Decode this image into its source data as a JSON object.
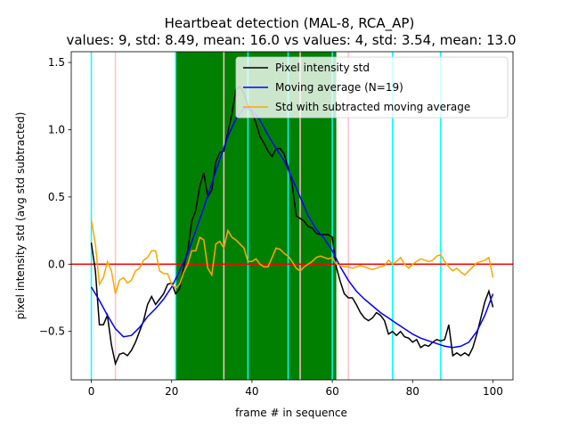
{
  "chart_data": {
    "type": "line",
    "title": "Heartbeat detection (MAL-8, RCA_AP)",
    "subtitle": "values: 9, std: 8.49, mean: 16.0 vs values: 4, std: 3.54, mean: 13.0",
    "xlabel": "frame # in sequence",
    "ylabel": "pixel intensity std (avg std subtracted)",
    "xlim": [
      -5,
      105
    ],
    "ylim": [
      -0.86,
      1.58
    ],
    "xticks": [
      "0",
      "20",
      "40",
      "60",
      "80",
      "100"
    ],
    "yticks": [
      "−0.5",
      "0.0",
      "0.5",
      "1.0",
      "1.5"
    ],
    "legend_position": "top-right",
    "highlight_band": {
      "x_start": 21,
      "x_end": 61,
      "color": "#008000"
    },
    "vlines_cyan": [
      0,
      21,
      39,
      49,
      60,
      75,
      87
    ],
    "vlines_pink": [
      6,
      33,
      52,
      64
    ],
    "hline_zero": {
      "y": 0,
      "color": "#ff0000"
    },
    "series": [
      {
        "name": "Pixel intensity std",
        "color": "#000000",
        "x": [
          0,
          1,
          2,
          3,
          4,
          5,
          6,
          7,
          8,
          9,
          10,
          11,
          12,
          13,
          14,
          15,
          16,
          17,
          18,
          19,
          20,
          21,
          22,
          23,
          24,
          25,
          26,
          27,
          28,
          29,
          30,
          31,
          32,
          33,
          34,
          35,
          36,
          37,
          38,
          39,
          40,
          41,
          42,
          43,
          44,
          45,
          46,
          47,
          48,
          49,
          50,
          51,
          52,
          53,
          54,
          55,
          56,
          57,
          58,
          59,
          60,
          61,
          62,
          63,
          64,
          65,
          66,
          67,
          68,
          69,
          70,
          71,
          72,
          73,
          74,
          75,
          76,
          77,
          78,
          79,
          80,
          81,
          82,
          83,
          84,
          85,
          86,
          87,
          88,
          89,
          90,
          91,
          92,
          93,
          94,
          95,
          96,
          97,
          98,
          99,
          100
        ],
        "y": [
          0.16,
          -0.05,
          -0.45,
          -0.45,
          -0.38,
          -0.6,
          -0.74,
          -0.67,
          -0.66,
          -0.68,
          -0.64,
          -0.58,
          -0.5,
          -0.42,
          -0.3,
          -0.24,
          -0.3,
          -0.26,
          -0.22,
          -0.15,
          -0.14,
          -0.22,
          -0.18,
          -0.02,
          0.1,
          0.32,
          0.4,
          0.58,
          0.68,
          0.5,
          0.55,
          0.76,
          0.83,
          0.84,
          0.98,
          1.12,
          1.3,
          1.32,
          1.27,
          1.18,
          1.13,
          1.05,
          0.95,
          0.9,
          0.84,
          0.8,
          0.86,
          0.86,
          0.82,
          0.72,
          0.6,
          0.36,
          0.34,
          0.32,
          0.28,
          0.27,
          0.23,
          0.22,
          0.22,
          0.22,
          0.2,
          -0.02,
          -0.13,
          -0.22,
          -0.25,
          -0.25,
          -0.3,
          -0.36,
          -0.4,
          -0.42,
          -0.4,
          -0.36,
          -0.38,
          -0.42,
          -0.52,
          -0.5,
          -0.53,
          -0.5,
          -0.54,
          -0.55,
          -0.58,
          -0.56,
          -0.62,
          -0.6,
          -0.61,
          -0.58,
          -0.56,
          -0.57,
          -0.56,
          -0.45,
          -0.68,
          -0.66,
          -0.68,
          -0.66,
          -0.68,
          -0.62,
          -0.52,
          -0.4,
          -0.28,
          -0.2,
          -0.32
        ]
      },
      {
        "name": "Moving average (N=19)",
        "color": "#0000ff",
        "x": [
          0,
          2,
          4,
          6,
          8,
          10,
          12,
          14,
          16,
          18,
          20,
          22,
          24,
          26,
          28,
          30,
          32,
          34,
          36,
          38,
          40,
          42,
          44,
          46,
          48,
          50,
          52,
          54,
          56,
          58,
          60,
          62,
          64,
          66,
          68,
          70,
          72,
          74,
          76,
          78,
          80,
          82,
          84,
          86,
          88,
          90,
          92,
          94,
          96,
          98,
          100
        ],
        "y": [
          -0.17,
          -0.27,
          -0.38,
          -0.48,
          -0.54,
          -0.53,
          -0.47,
          -0.39,
          -0.33,
          -0.26,
          -0.17,
          -0.05,
          0.08,
          0.25,
          0.42,
          0.6,
          0.78,
          0.95,
          1.08,
          1.16,
          1.15,
          1.07,
          0.96,
          0.86,
          0.77,
          0.64,
          0.5,
          0.36,
          0.26,
          0.19,
          0.1,
          -0.02,
          -0.12,
          -0.2,
          -0.26,
          -0.31,
          -0.36,
          -0.4,
          -0.44,
          -0.48,
          -0.52,
          -0.55,
          -0.57,
          -0.59,
          -0.61,
          -0.62,
          -0.61,
          -0.58,
          -0.5,
          -0.38,
          -0.22
        ]
      },
      {
        "name": "Std with subtracted moving average",
        "color": "#ffa500",
        "x": [
          0,
          1,
          2,
          3,
          4,
          5,
          6,
          7,
          8,
          9,
          10,
          11,
          12,
          13,
          14,
          15,
          16,
          17,
          18,
          19,
          20,
          21,
          22,
          23,
          24,
          25,
          26,
          27,
          28,
          29,
          30,
          31,
          32,
          33,
          34,
          35,
          36,
          37,
          38,
          39,
          40,
          41,
          42,
          43,
          44,
          45,
          46,
          47,
          48,
          49,
          50,
          51,
          52,
          53,
          54,
          55,
          56,
          57,
          58,
          59,
          60,
          61,
          62,
          63,
          64,
          65,
          66,
          67,
          68,
          69,
          70,
          71,
          72,
          73,
          74,
          75,
          76,
          77,
          78,
          79,
          80,
          81,
          82,
          83,
          84,
          85,
          86,
          87,
          88,
          89,
          90,
          91,
          92,
          93,
          94,
          95,
          96,
          97,
          98,
          99,
          100
        ],
        "y": [
          0.33,
          0.15,
          -0.15,
          -0.1,
          0.02,
          -0.05,
          -0.22,
          -0.12,
          -0.1,
          -0.14,
          -0.12,
          -0.05,
          -0.03,
          0.03,
          0.05,
          0.1,
          0.1,
          -0.05,
          -0.07,
          -0.07,
          -0.15,
          -0.18,
          -0.15,
          -0.06,
          0.0,
          0.1,
          0.1,
          0.2,
          0.18,
          -0.03,
          -0.08,
          0.15,
          0.17,
          0.12,
          0.25,
          0.2,
          0.18,
          0.15,
          0.12,
          0.02,
          0.02,
          0.04,
          0.0,
          -0.02,
          -0.02,
          0.05,
          0.12,
          0.11,
          0.08,
          0.06,
          0.02,
          -0.03,
          -0.05,
          -0.02,
          0.0,
          0.02,
          0.05,
          0.06,
          0.05,
          0.04,
          0.05,
          0.0,
          -0.01,
          -0.02,
          -0.02,
          -0.03,
          -0.02,
          -0.01,
          -0.02,
          -0.03,
          -0.04,
          -0.03,
          -0.02,
          -0.01,
          0.03,
          0.0,
          0.02,
          0.05,
          0.0,
          -0.03,
          0.0,
          0.02,
          0.04,
          0.03,
          0.02,
          0.03,
          0.06,
          0.07,
          0.02,
          -0.02,
          -0.05,
          -0.03,
          -0.06,
          -0.08,
          -0.05,
          -0.02,
          0.01,
          0.02,
          0.03,
          0.05,
          -0.1
        ]
      }
    ]
  }
}
